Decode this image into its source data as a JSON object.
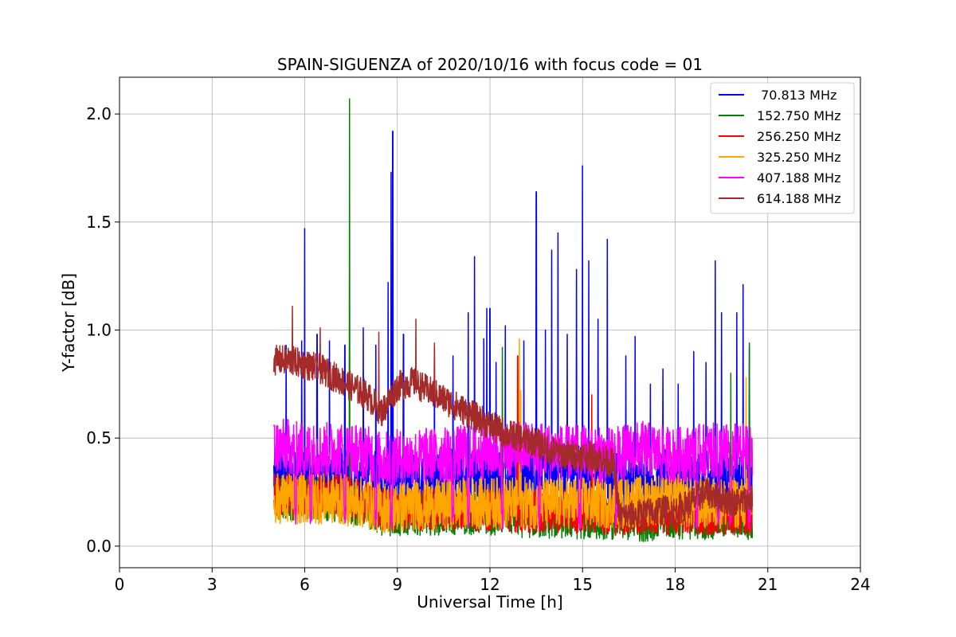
{
  "chart_data": {
    "type": "line",
    "title": "SPAIN-SIGUENZA of 2020/10/16 with focus code = 01",
    "xlabel": "Universal Time [h]",
    "ylabel": "Y-factor [dB]",
    "xlim": [
      0,
      24
    ],
    "ylim": [
      -0.1,
      2.17
    ],
    "xticks": [
      0,
      3,
      6,
      9,
      12,
      15,
      18,
      21,
      24
    ],
    "yticks": [
      0.0,
      0.5,
      1.0,
      1.5,
      2.0
    ],
    "xtick_labels": [
      "0",
      "3",
      "6",
      "9",
      "12",
      "15",
      "18",
      "21",
      "24"
    ],
    "ytick_labels": [
      "0.0",
      "0.5",
      "1.0",
      "1.5",
      "2.0"
    ],
    "grid": true,
    "legend": "top-right",
    "x_range_of_data": [
      5.0,
      20.5
    ],
    "series": [
      {
        "name": " 70.813 MHz",
        "color": "#0000ff",
        "x": [
          5.0,
          5.5,
          6.0,
          6.5,
          7.0,
          7.5,
          8.0,
          8.5,
          9.0,
          9.5,
          10.0,
          10.5,
          11.0,
          11.5,
          12.0,
          12.5,
          13.0,
          13.5,
          14.0,
          14.5,
          15.0,
          15.5,
          16.0,
          16.5,
          17.0,
          17.5,
          18.0,
          18.5,
          19.0,
          19.5,
          20.0,
          20.5
        ],
        "base": [
          0.33,
          0.34,
          0.33,
          0.33,
          0.32,
          0.31,
          0.31,
          0.29,
          0.3,
          0.3,
          0.31,
          0.31,
          0.32,
          0.31,
          0.32,
          0.32,
          0.33,
          0.33,
          0.34,
          0.35,
          0.34,
          0.34,
          0.3,
          0.3,
          0.3,
          0.31,
          0.31,
          0.3,
          0.3,
          0.3,
          0.3,
          0.3
        ],
        "noise": 0.14,
        "spikes": [
          [
            5.4,
            0.93
          ],
          [
            5.9,
            0.95
          ],
          [
            6.0,
            1.47
          ],
          [
            6.4,
            0.98
          ],
          [
            6.8,
            0.95
          ],
          [
            7.3,
            0.93
          ],
          [
            7.9,
            1.01
          ],
          [
            8.3,
            0.93
          ],
          [
            8.7,
            1.22
          ],
          [
            8.8,
            1.73
          ],
          [
            8.85,
            1.92
          ],
          [
            9.2,
            0.98
          ],
          [
            10.2,
            0.92
          ],
          [
            10.8,
            0.88
          ],
          [
            11.3,
            1.08
          ],
          [
            11.5,
            1.34
          ],
          [
            11.8,
            0.96
          ],
          [
            11.9,
            1.1
          ],
          [
            12.0,
            1.1
          ],
          [
            12.2,
            0.85
          ],
          [
            12.5,
            1.02
          ],
          [
            13.1,
            0.95
          ],
          [
            13.5,
            1.64
          ],
          [
            13.8,
            1.0
          ],
          [
            14.0,
            1.37
          ],
          [
            14.2,
            1.45
          ],
          [
            14.5,
            0.98
          ],
          [
            14.8,
            1.28
          ],
          [
            15.0,
            1.76
          ],
          [
            15.2,
            1.32
          ],
          [
            15.5,
            1.05
          ],
          [
            15.8,
            1.42
          ],
          [
            16.4,
            0.88
          ],
          [
            16.7,
            0.97
          ],
          [
            17.2,
            0.75
          ],
          [
            17.6,
            0.82
          ],
          [
            18.1,
            0.75
          ],
          [
            18.6,
            0.9
          ],
          [
            19.0,
            0.85
          ],
          [
            19.3,
            1.32
          ],
          [
            19.5,
            1.08
          ],
          [
            20.0,
            1.08
          ],
          [
            20.2,
            1.21
          ],
          [
            20.4,
            0.92
          ]
        ]
      },
      {
        "name": "152.750 MHz",
        "color": "#008000",
        "x": [
          5.0,
          5.5,
          6.0,
          6.5,
          7.0,
          7.5,
          8.0,
          8.5,
          9.0,
          9.5,
          10.0,
          10.5,
          11.0,
          11.5,
          12.0,
          12.5,
          13.0,
          13.5,
          14.0,
          14.5,
          15.0,
          15.5,
          16.0,
          16.5,
          17.0,
          17.5,
          18.0,
          18.5,
          19.0,
          19.5,
          20.0,
          20.5
        ],
        "base": [
          0.22,
          0.22,
          0.22,
          0.22,
          0.21,
          0.2,
          0.18,
          0.15,
          0.14,
          0.15,
          0.15,
          0.15,
          0.15,
          0.15,
          0.15,
          0.15,
          0.14,
          0.13,
          0.13,
          0.13,
          0.13,
          0.13,
          0.13,
          0.12,
          0.12,
          0.13,
          0.13,
          0.13,
          0.13,
          0.13,
          0.13,
          0.13
        ],
        "noise": 0.1,
        "spikes": [
          [
            7.45,
            2.07
          ],
          [
            12.4,
            0.92
          ],
          [
            20.4,
            0.94
          ],
          [
            19.8,
            0.8
          ]
        ]
      },
      {
        "name": "256.250 MHz",
        "color": "#ff0000",
        "x": [
          5.0,
          5.5,
          6.0,
          6.5,
          7.0,
          7.5,
          8.0,
          8.5,
          9.0,
          9.5,
          10.0,
          10.5,
          11.0,
          11.5,
          12.0,
          12.5,
          13.0,
          13.5,
          14.0,
          14.5,
          15.0,
          15.5,
          16.0,
          16.5,
          17.0,
          17.5,
          18.0,
          18.5,
          19.0,
          19.5,
          20.0,
          20.5
        ],
        "base": [
          0.24,
          0.24,
          0.24,
          0.24,
          0.23,
          0.22,
          0.2,
          0.17,
          0.16,
          0.17,
          0.17,
          0.17,
          0.17,
          0.17,
          0.17,
          0.17,
          0.16,
          0.16,
          0.16,
          0.16,
          0.16,
          0.16,
          0.15,
          0.15,
          0.15,
          0.15,
          0.15,
          0.15,
          0.15,
          0.15,
          0.15,
          0.15
        ],
        "noise": 0.1,
        "spikes": [
          [
            12.9,
            0.88
          ],
          [
            15.3,
            0.7
          ]
        ]
      },
      {
        "name": "325.250 MHz",
        "color": "#ffa500",
        "x": [
          5.0,
          5.5,
          6.0,
          6.5,
          7.0,
          7.5,
          8.0,
          8.5,
          9.0,
          9.5,
          10.0,
          10.5,
          11.0,
          11.5,
          12.0,
          12.5,
          13.0,
          13.5,
          14.0,
          14.5,
          15.0,
          15.5,
          16.0,
          16.5,
          17.0,
          17.5,
          18.0,
          18.5,
          19.0,
          19.5,
          20.0,
          20.5
        ],
        "base": [
          0.22,
          0.22,
          0.22,
          0.22,
          0.22,
          0.21,
          0.2,
          0.18,
          0.18,
          0.19,
          0.19,
          0.19,
          0.2,
          0.2,
          0.2,
          0.2,
          0.2,
          0.2,
          0.2,
          0.2,
          0.2,
          0.2,
          0.2,
          0.2,
          0.21,
          0.22,
          0.22,
          0.2,
          0.2,
          0.2,
          0.2,
          0.2
        ],
        "noise": 0.12,
        "spikes": [
          [
            12.95,
            0.96
          ],
          [
            13.0,
            0.72
          ],
          [
            20.3,
            0.78
          ]
        ]
      },
      {
        "name": "407.188 MHz",
        "color": "#ff00ff",
        "x": [
          5.0,
          5.5,
          6.0,
          6.5,
          7.0,
          7.5,
          8.0,
          8.5,
          9.0,
          9.5,
          10.0,
          10.5,
          11.0,
          11.5,
          12.0,
          12.5,
          13.0,
          13.5,
          14.0,
          14.5,
          15.0,
          15.5,
          16.0,
          16.5,
          17.0,
          17.5,
          18.0,
          18.5,
          19.0,
          19.5,
          20.0,
          20.5
        ],
        "base": [
          0.46,
          0.46,
          0.44,
          0.44,
          0.45,
          0.44,
          0.43,
          0.4,
          0.41,
          0.41,
          0.42,
          0.42,
          0.43,
          0.43,
          0.44,
          0.44,
          0.45,
          0.45,
          0.44,
          0.43,
          0.43,
          0.42,
          0.42,
          0.44,
          0.45,
          0.43,
          0.42,
          0.43,
          0.44,
          0.44,
          0.44,
          0.44
        ],
        "noise": 0.13,
        "dips": [
          5.7,
          6.2,
          7.3,
          8.3,
          8.8,
          10.8,
          11.3,
          12.4,
          13.6,
          14.9,
          16.1,
          18.7,
          19.4,
          19.8,
          20.4
        ],
        "spikes": []
      },
      {
        "name": "614.188 MHz",
        "color": "#a52a2a",
        "x": [
          5.0,
          5.5,
          6.0,
          6.5,
          7.0,
          7.5,
          8.0,
          8.5,
          9.0,
          9.5,
          10.0,
          10.5,
          11.0,
          11.5,
          12.0,
          12.5,
          13.0,
          13.5,
          14.0,
          14.5,
          15.0,
          15.5,
          16.0,
          16.2,
          16.5,
          17.0,
          17.5,
          18.0,
          18.5,
          19.0,
          19.5,
          20.0,
          20.5
        ],
        "base": [
          0.86,
          0.86,
          0.84,
          0.82,
          0.78,
          0.74,
          0.7,
          0.62,
          0.74,
          0.76,
          0.72,
          0.68,
          0.64,
          0.6,
          0.56,
          0.52,
          0.5,
          0.48,
          0.44,
          0.42,
          0.42,
          0.41,
          0.38,
          0.14,
          0.14,
          0.15,
          0.17,
          0.16,
          0.2,
          0.25,
          0.22,
          0.2,
          0.22
        ],
        "noise": 0.07,
        "spikes": [
          [
            5.6,
            1.11
          ],
          [
            6.5,
            1.01
          ],
          [
            9.6,
            1.05
          ],
          [
            10.2,
            0.94
          ],
          [
            8.4,
            0.99
          ]
        ]
      }
    ]
  }
}
